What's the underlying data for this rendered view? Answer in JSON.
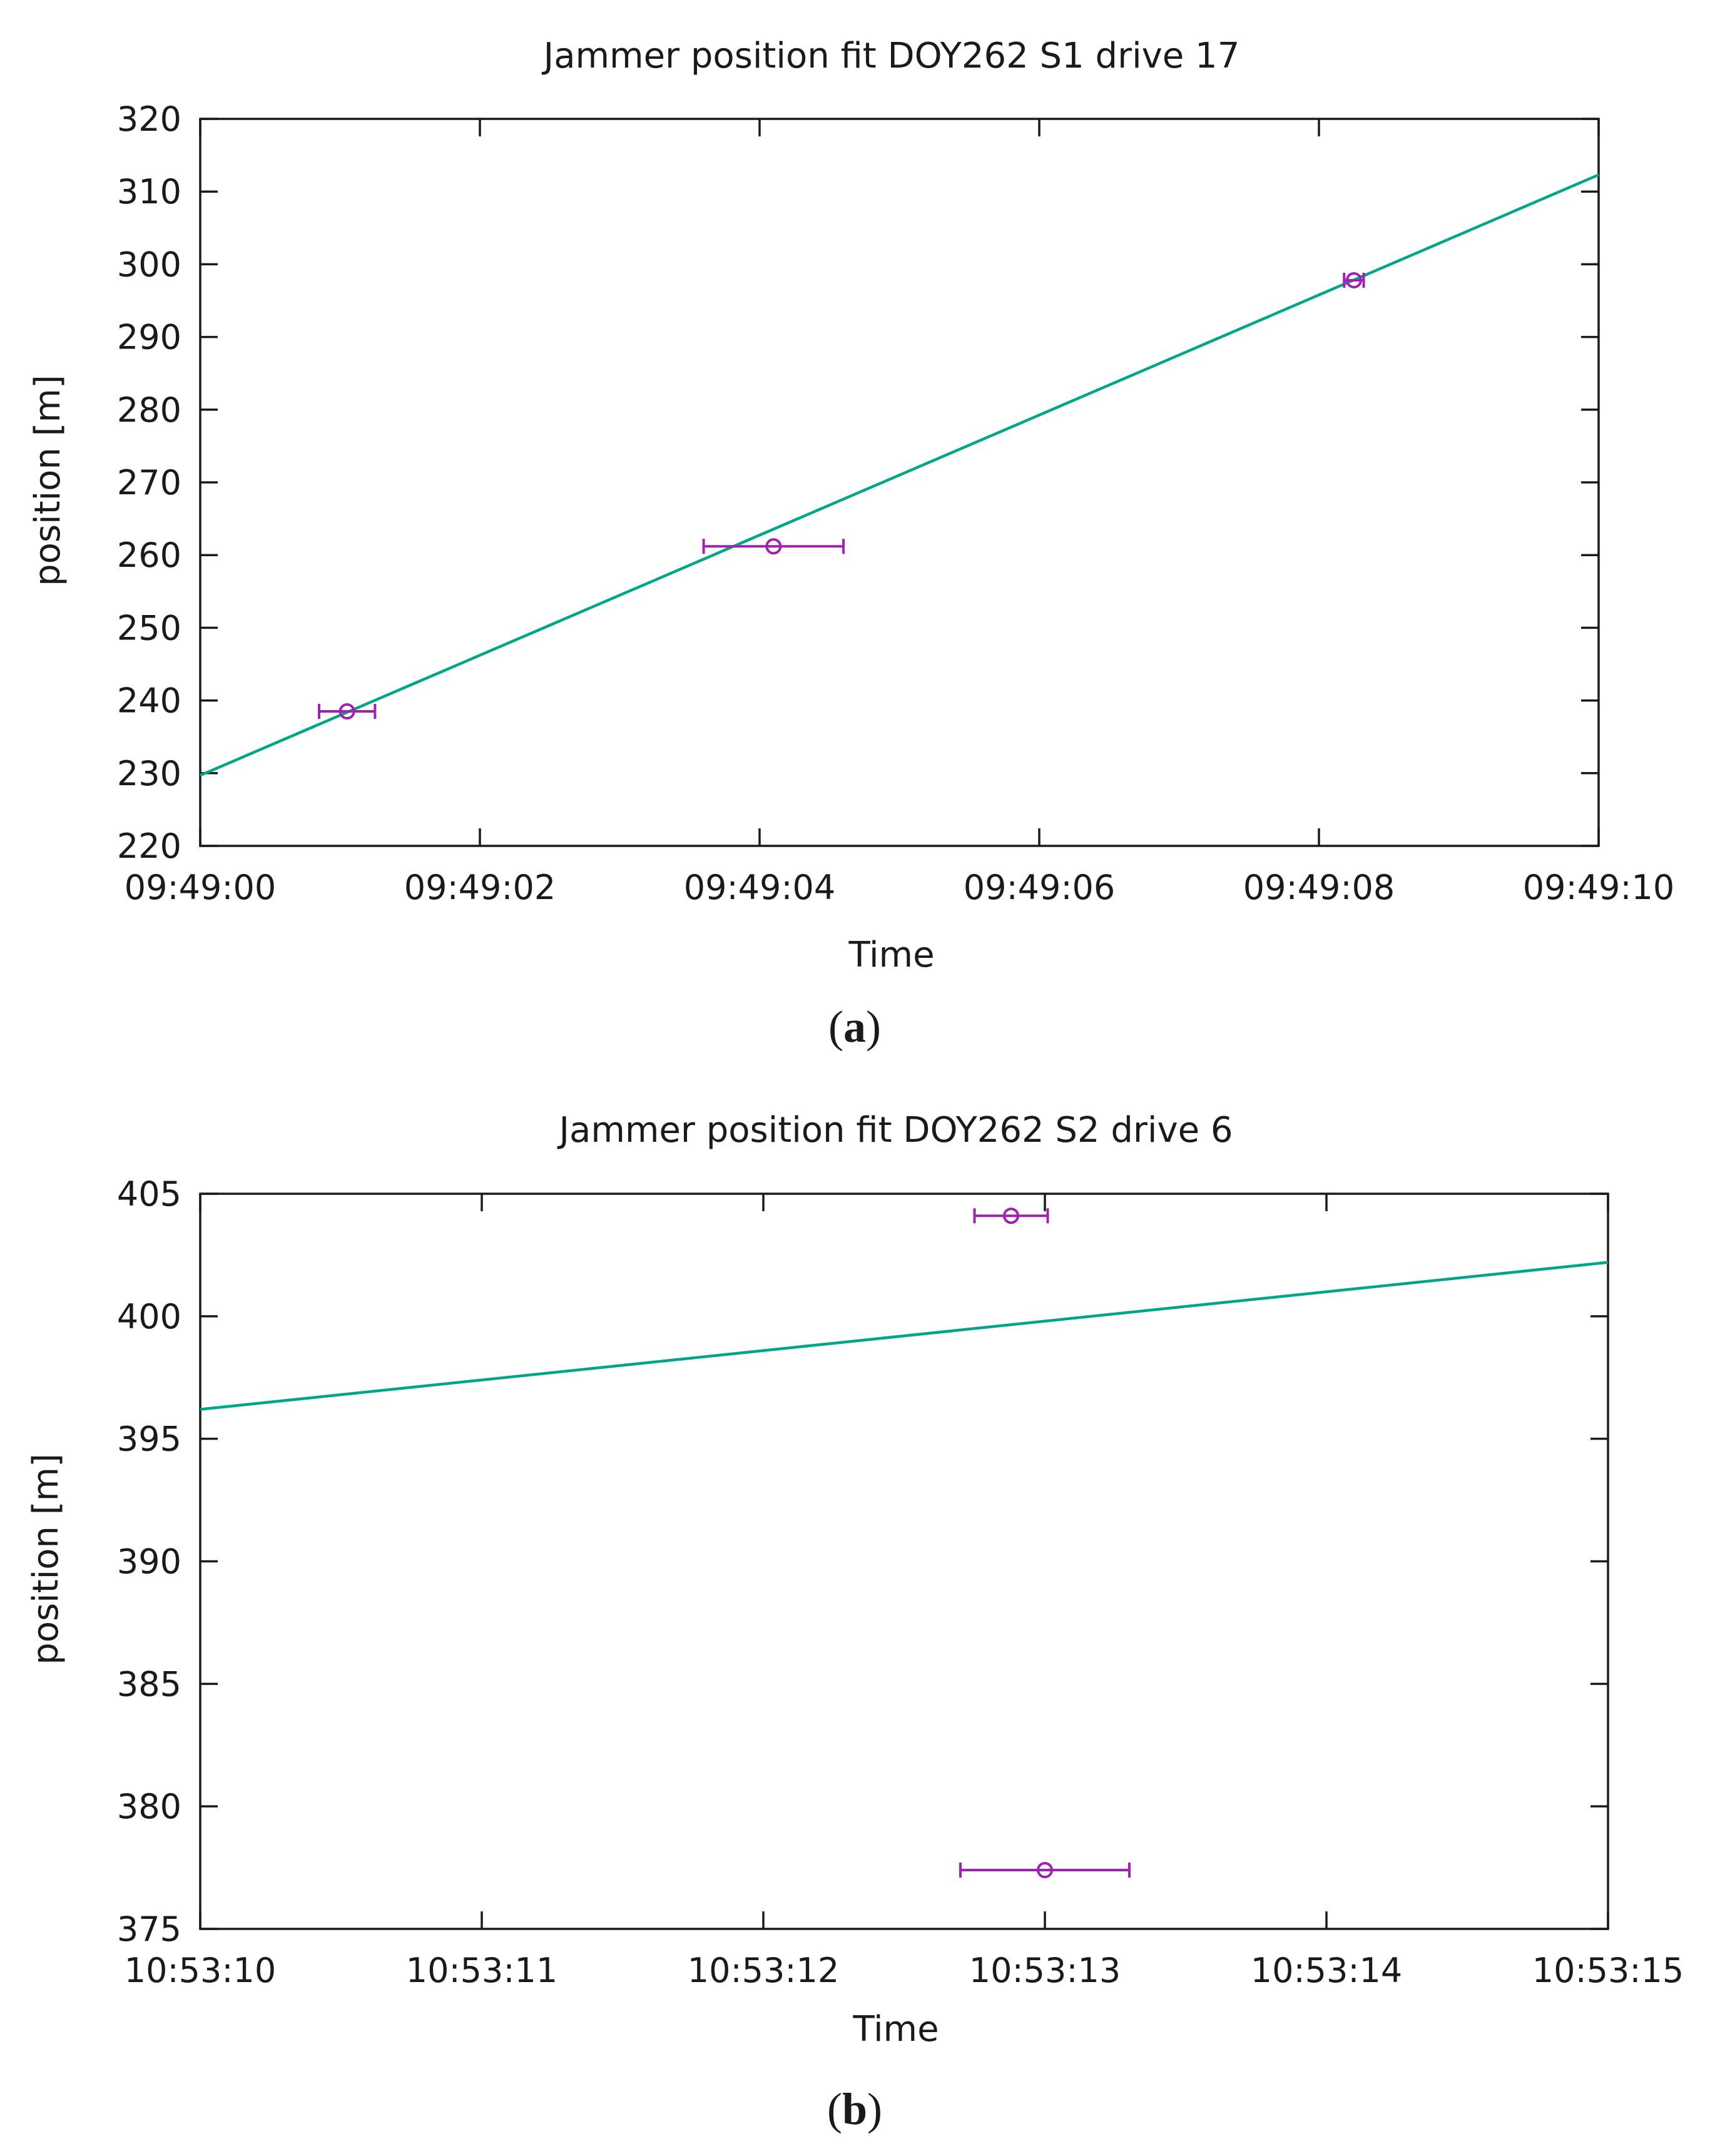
{
  "chart_data": [
    {
      "type": "scatter",
      "panel_label": "a",
      "title": "Jammer position fit DOY262 S1 drive 17",
      "xlabel": "Time",
      "ylabel": "position [m]",
      "xlim": [
        0,
        10
      ],
      "ylim": [
        220,
        320
      ],
      "xticks": [
        0,
        2,
        4,
        6,
        8,
        10
      ],
      "xtick_labels": [
        "09:49:00",
        "09:49:02",
        "09:49:04",
        "09:49:06",
        "09:49:08",
        "09:49:10"
      ],
      "yticks": [
        220,
        230,
        240,
        250,
        260,
        270,
        280,
        290,
        300,
        310,
        320
      ],
      "ytick_labels": [
        "220",
        "230",
        "240",
        "250",
        "260",
        "270",
        "280",
        "290",
        "300",
        "310",
        "320"
      ],
      "fit_line": {
        "x": [
          0,
          10
        ],
        "y": [
          229.7,
          312.3
        ],
        "color": "#00a68a"
      },
      "points": [
        {
          "x": 1.05,
          "y": 238.5,
          "xerr_low": 0.85,
          "xerr_high": 1.25
        },
        {
          "x": 4.1,
          "y": 261.2,
          "xerr_low": 3.6,
          "xerr_high": 4.6
        },
        {
          "x": 8.25,
          "y": 297.8,
          "xerr_low": 8.18,
          "xerr_high": 8.32
        }
      ],
      "point_color": "#a020b0"
    },
    {
      "type": "scatter",
      "panel_label": "b",
      "title": "Jammer position fit DOY262 S2 drive 6",
      "xlabel": "Time",
      "ylabel": "position [m]",
      "xlim": [
        0,
        5
      ],
      "ylim": [
        375,
        405
      ],
      "xticks": [
        0,
        1,
        2,
        3,
        4,
        5
      ],
      "xtick_labels": [
        "10:53:10",
        "10:53:11",
        "10:53:12",
        "10:53:13",
        "10:53:14",
        "10:53:15"
      ],
      "yticks": [
        375,
        380,
        385,
        390,
        395,
        400,
        405
      ],
      "ytick_labels": [
        "375",
        "380",
        "385",
        "390",
        "395",
        "400",
        "405"
      ],
      "fit_line": {
        "x": [
          0,
          5
        ],
        "y": [
          396.2,
          402.2
        ],
        "color": "#00a68a"
      },
      "points": [
        {
          "x": 2.88,
          "y": 404.1,
          "xerr_low": 2.75,
          "xerr_high": 3.01
        },
        {
          "x": 3.0,
          "y": 377.4,
          "xerr_low": 2.7,
          "xerr_high": 3.3
        }
      ],
      "point_color": "#a020b0"
    }
  ]
}
